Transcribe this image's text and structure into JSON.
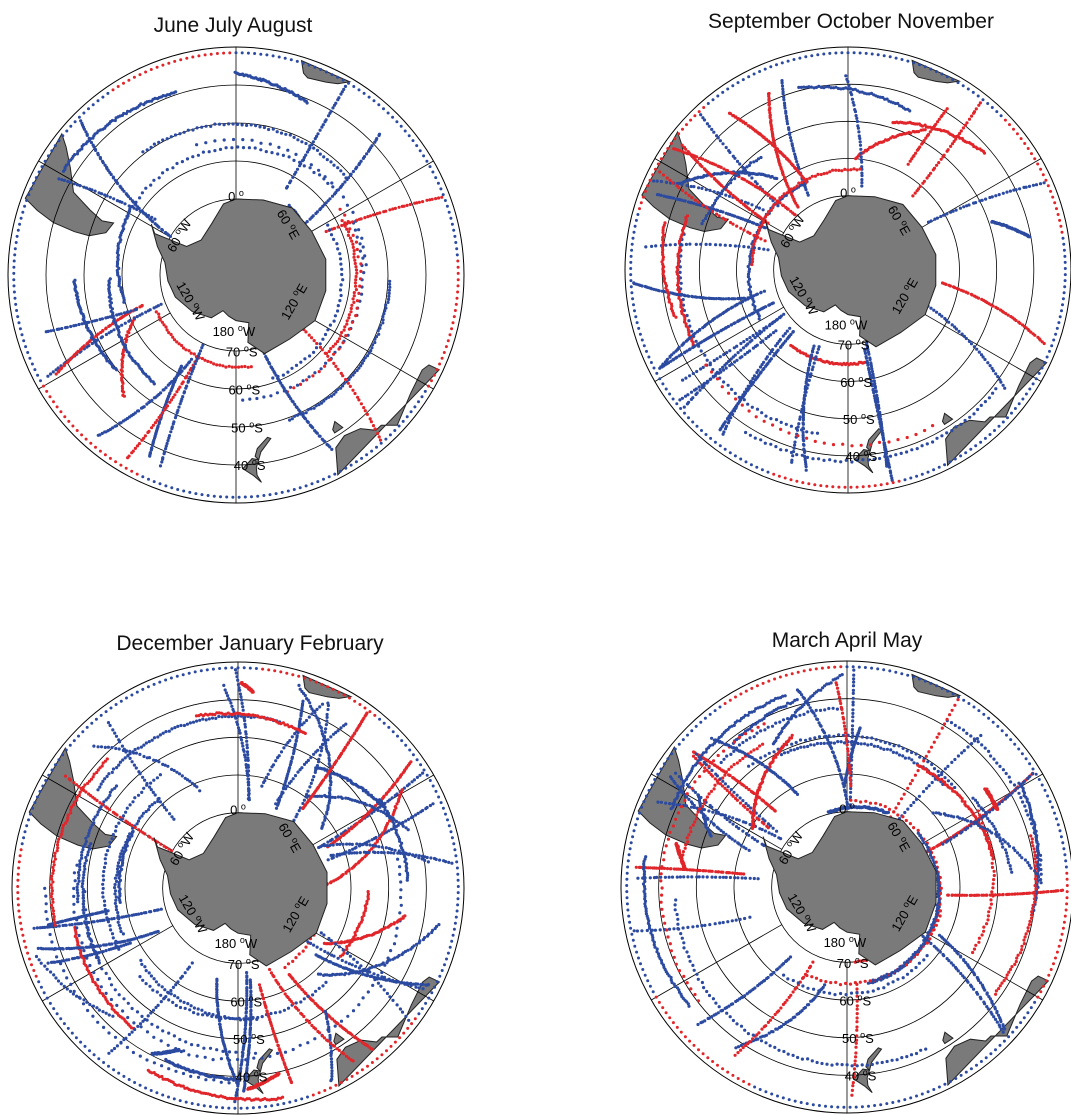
{
  "colors": {
    "land": "#7a7a7a",
    "land_edge": "#222222",
    "grid": "#000000",
    "track_blue": "#2b4aa0",
    "track_red": "#e0262a",
    "background": "#ffffff"
  },
  "labels": {
    "lon_0": "0",
    "lon_60e": "60",
    "lon_120e": "120",
    "lon_180": "180",
    "lon_60w": "60",
    "lon_120w": "120",
    "lat_70": "70",
    "lat_60": "60",
    "lat_50": "50",
    "lat_40": "40",
    "deg": "o",
    "e": "E",
    "w": "W",
    "s": "S"
  },
  "panels": [
    {
      "title": "June July August",
      "season": "JJA",
      "track_density": 0.35,
      "red_fraction": 0.25
    },
    {
      "title": "September October November",
      "season": "SON",
      "track_density": 0.6,
      "red_fraction": 0.35
    },
    {
      "title": "December January February",
      "season": "DJF",
      "track_density": 1.0,
      "red_fraction": 0.3
    },
    {
      "title": "March April May",
      "season": "MAM",
      "track_density": 0.85,
      "red_fraction": 0.4
    }
  ]
}
